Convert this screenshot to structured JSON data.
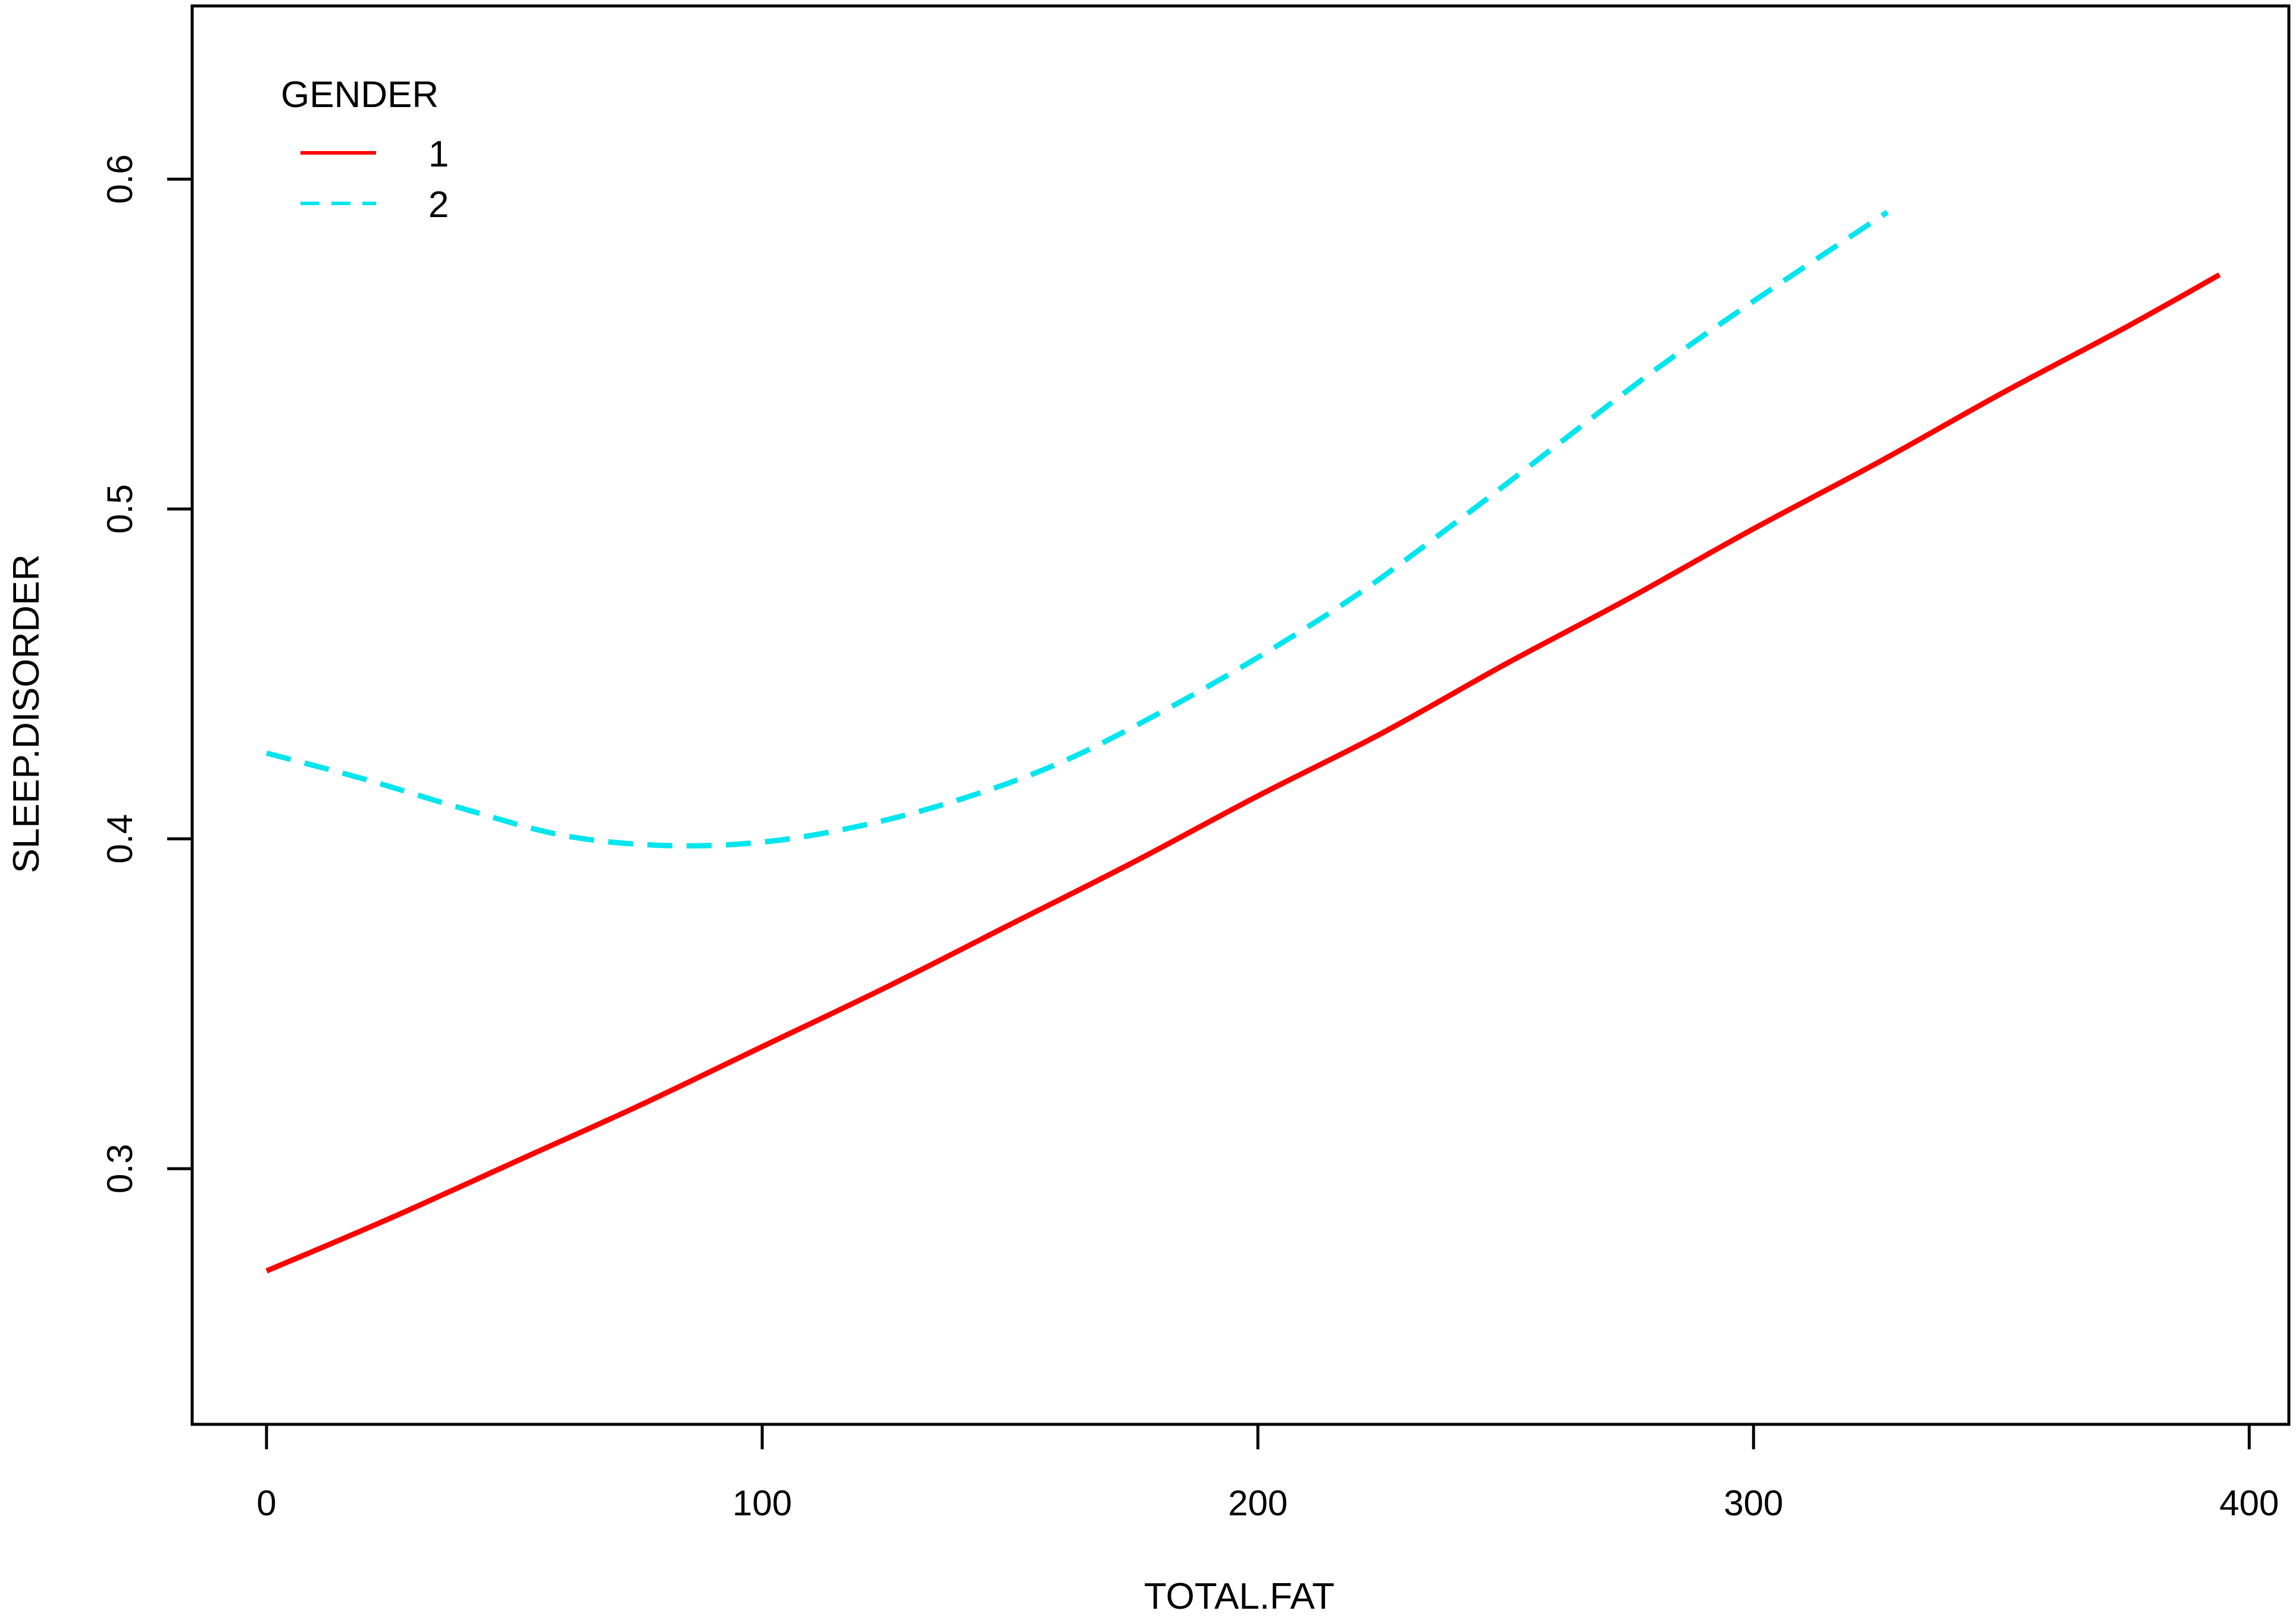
{
  "chart_data": {
    "type": "line",
    "title": "",
    "xlabel": "TOTAL.FAT",
    "ylabel": "SLEEP.DISORDER",
    "xlim": [
      -15,
      408
    ],
    "ylim": [
      0.2225,
      0.6525
    ],
    "x_ticks": [
      0,
      100,
      200,
      300,
      400
    ],
    "y_ticks": [
      0.3,
      0.4,
      0.5,
      0.6
    ],
    "x_tick_labels": [
      "0",
      "100",
      "200",
      "300",
      "400"
    ],
    "y_tick_labels": [
      "0.3",
      "0.4",
      "0.5",
      "0.6"
    ],
    "grid": false,
    "legend": {
      "title": "GENDER",
      "position": "top-left",
      "entries": [
        "1",
        "2"
      ]
    },
    "series": [
      {
        "name": "1",
        "color": "#ff0000",
        "dash": "solid",
        "x": [
          0,
          25,
          50,
          75,
          100,
          125,
          150,
          175,
          200,
          225,
          250,
          275,
          300,
          325,
          350,
          375,
          394
        ],
        "y": [
          0.269,
          0.285,
          0.302,
          0.319,
          0.337,
          0.355,
          0.374,
          0.393,
          0.413,
          0.432,
          0.453,
          0.473,
          0.494,
          0.514,
          0.535,
          0.555,
          0.571
        ]
      },
      {
        "name": "2",
        "color": "#00e5ee",
        "dash": "dashed",
        "x": [
          0,
          20,
          40,
          60,
          80,
          100,
          120,
          140,
          160,
          180,
          200,
          220,
          240,
          260,
          280,
          300,
          327
        ],
        "y": [
          0.426,
          0.418,
          0.409,
          0.401,
          0.398,
          0.399,
          0.404,
          0.412,
          0.423,
          0.438,
          0.455,
          0.474,
          0.496,
          0.519,
          0.542,
          0.563,
          0.59
        ]
      }
    ]
  }
}
